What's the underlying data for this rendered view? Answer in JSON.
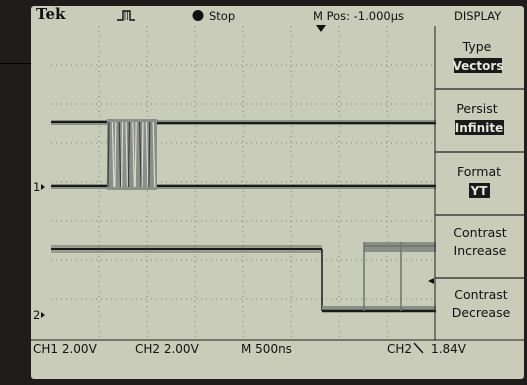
{
  "header": {
    "brand": "Tek",
    "run_state": "Stop",
    "position_readout": "M Pos: -1.000µs",
    "menu_title": "DISPLAY",
    "trigger_icon": "pulse-trigger-icon",
    "stop_icon": "filled-circle-icon"
  },
  "menu": {
    "items": [
      {
        "label": "Type",
        "value": "Vectors"
      },
      {
        "label": "Persist",
        "value": "Infinite"
      },
      {
        "label": "Format",
        "value": "YT"
      },
      {
        "label": "Contrast",
        "value": "Increase"
      },
      {
        "label": "Contrast",
        "value": "Decrease"
      }
    ]
  },
  "channels": {
    "ch1_marker": "1",
    "ch2_marker": "2"
  },
  "status": {
    "ch1_scale": "CH1  2.00V",
    "ch2_scale": "CH2  2.00V",
    "timebase": "M 500ns",
    "trigger_source": "CH2",
    "trigger_slope_icon": "falling-edge-icon",
    "trigger_level": "1.84V"
  },
  "colors": {
    "screen_bg": "#c8ccb9",
    "trace": "#1a1a1a",
    "persist_trace": "#8a8f88",
    "menu_highlight": "#1a1a1a",
    "bezel": "#1e1d1b"
  }
}
